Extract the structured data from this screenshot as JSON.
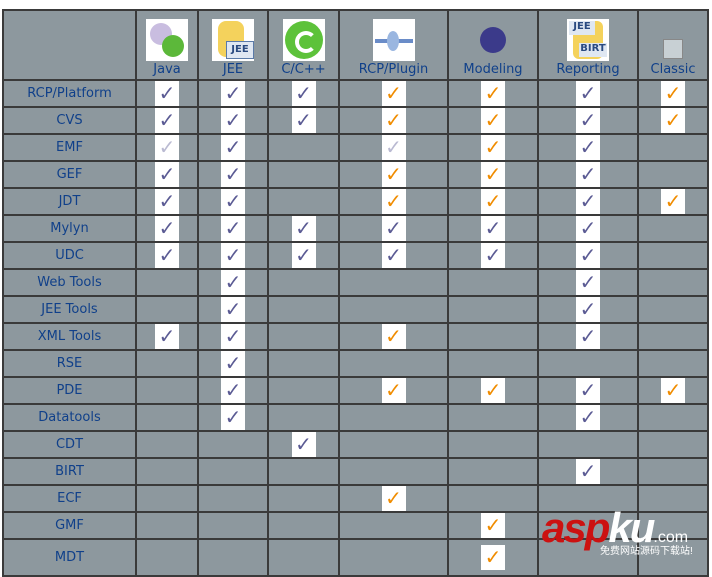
{
  "colors": {
    "blue_check": "#5b5b94",
    "orange_check": "#f08c00",
    "light_check": "#babad2",
    "table_bg": "#8d989e",
    "text": "#10408a"
  },
  "packages": [
    {
      "label": "Java",
      "icon": "java-package-icon"
    },
    {
      "label": "JEE",
      "icon": "jee-package-icon"
    },
    {
      "label": "C/C++",
      "icon": "cpp-package-icon"
    },
    {
      "label": "RCP/Plugin",
      "icon": "rcp-plugin-package-icon"
    },
    {
      "label": "Modeling",
      "icon": "modeling-package-icon"
    },
    {
      "label": "Reporting",
      "icon": "reporting-package-icon"
    },
    {
      "label": "Classic",
      "icon": "classic-package-icon"
    }
  ],
  "legend_note": "B = included (blue check), O = included (orange check), L = included (faded check), empty = not included",
  "features": [
    {
      "name": "RCP/Platform",
      "cells": [
        "B",
        "B",
        "B",
        "O",
        "O",
        "B",
        "O"
      ]
    },
    {
      "name": "CVS",
      "cells": [
        "B",
        "B",
        "B",
        "O",
        "O",
        "B",
        "O"
      ]
    },
    {
      "name": "EMF",
      "cells": [
        "L",
        "B",
        "",
        "L",
        "O",
        "B",
        ""
      ]
    },
    {
      "name": "GEF",
      "cells": [
        "B",
        "B",
        "",
        "O",
        "O",
        "B",
        ""
      ]
    },
    {
      "name": "JDT",
      "cells": [
        "B",
        "B",
        "",
        "O",
        "O",
        "B",
        "O"
      ]
    },
    {
      "name": "Mylyn",
      "cells": [
        "B",
        "B",
        "B",
        "B",
        "B",
        "B",
        ""
      ]
    },
    {
      "name": "UDC",
      "cells": [
        "B",
        "B",
        "B",
        "B",
        "B",
        "B",
        ""
      ]
    },
    {
      "name": "Web Tools",
      "cells": [
        "",
        "B",
        "",
        "",
        "",
        "B",
        ""
      ]
    },
    {
      "name": "JEE Tools",
      "cells": [
        "",
        "B",
        "",
        "",
        "",
        "B",
        ""
      ]
    },
    {
      "name": "XML Tools",
      "cells": [
        "B",
        "B",
        "",
        "O",
        "",
        "B",
        ""
      ]
    },
    {
      "name": "RSE",
      "cells": [
        "",
        "B",
        "",
        "",
        "",
        "",
        ""
      ]
    },
    {
      "name": "PDE",
      "cells": [
        "",
        "B",
        "",
        "O",
        "O",
        "B",
        "O"
      ]
    },
    {
      "name": "Datatools",
      "cells": [
        "",
        "B",
        "",
        "",
        "",
        "B",
        ""
      ]
    },
    {
      "name": "CDT",
      "cells": [
        "",
        "",
        "B",
        "",
        "",
        "",
        ""
      ]
    },
    {
      "name": "BIRT",
      "cells": [
        "",
        "",
        "",
        "",
        "",
        "B",
        ""
      ]
    },
    {
      "name": "ECF",
      "cells": [
        "",
        "",
        "",
        "O",
        "",
        "",
        ""
      ]
    },
    {
      "name": "GMF",
      "cells": [
        "",
        "",
        "",
        "",
        "O",
        "",
        ""
      ]
    },
    {
      "name": "MDT",
      "cells": [
        "",
        "",
        "",
        "",
        "O",
        "",
        ""
      ]
    }
  ],
  "check_glyph": "✓",
  "watermark": {
    "red": "asp",
    "white": "ku",
    "domain": ".com",
    "tagline": "免费网站源码下载站!"
  }
}
